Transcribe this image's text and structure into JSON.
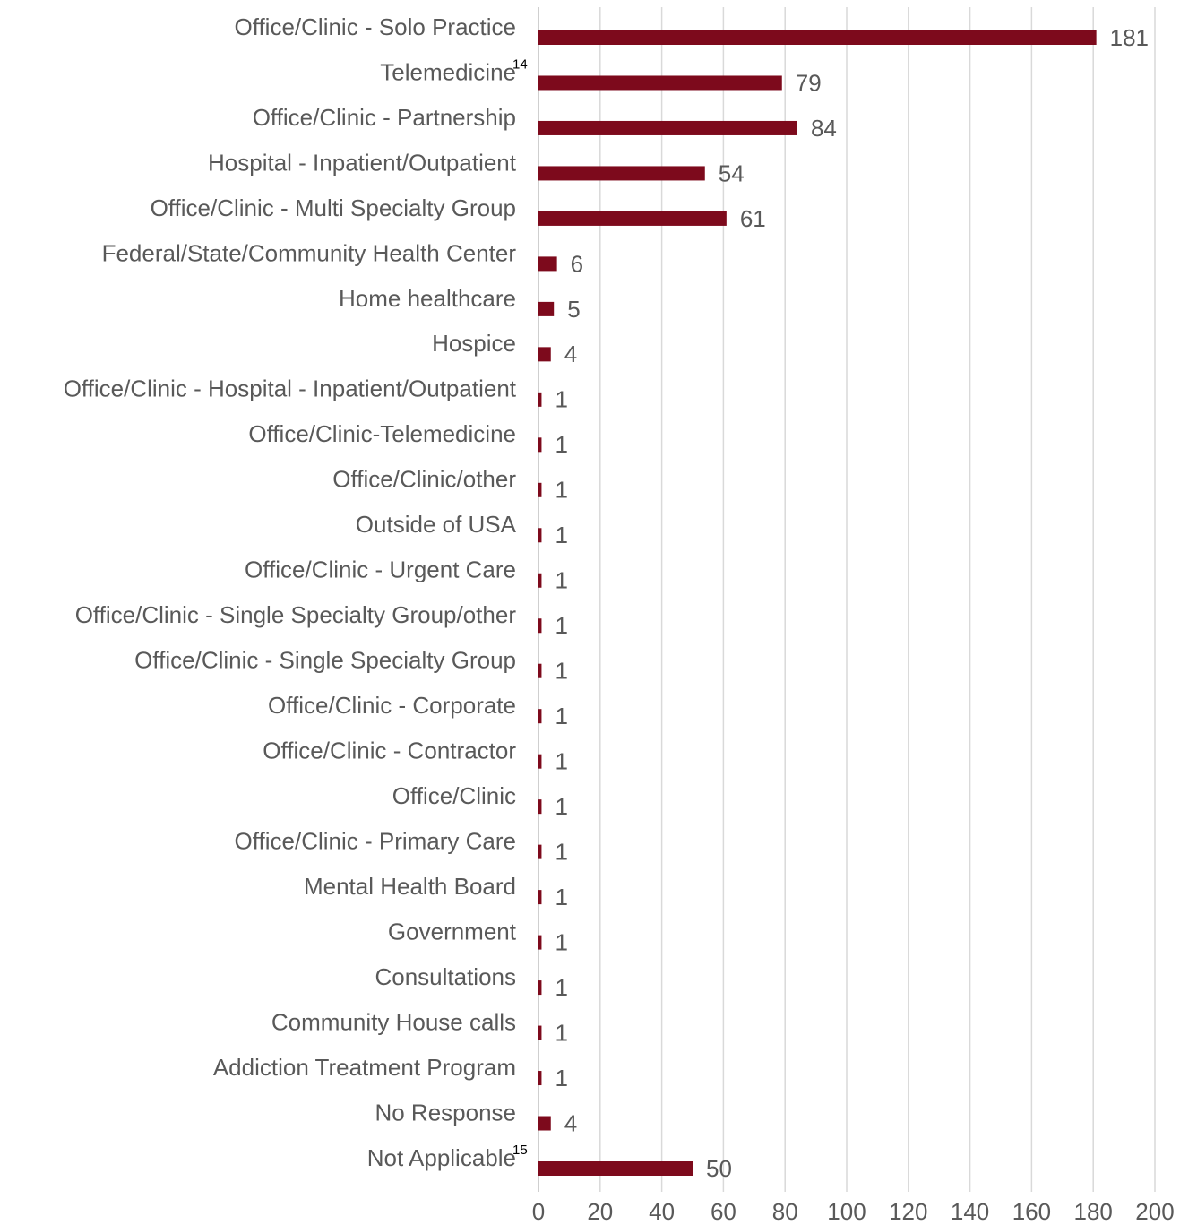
{
  "chart_data": {
    "type": "barh",
    "categories": [
      "Office/Clinic - Solo Practice",
      "Telemedicine",
      "Office/Clinic - Partnership",
      "Hospital - Inpatient/Outpatient",
      "Office/Clinic - Multi Specialty Group",
      "Federal/State/Community Health Center",
      "Home healthcare",
      "Hospice",
      "Office/Clinic - Hospital - Inpatient/Outpatient",
      "Office/Clinic-Telemedicine",
      "Office/Clinic/other",
      "Outside of USA",
      "Office/Clinic - Urgent Care",
      "Office/Clinic - Single Specialty Group/other",
      "Office/Clinic - Single Specialty Group",
      "Office/Clinic - Corporate",
      "Office/Clinic - Contractor",
      "Office/Clinic",
      "Office/Clinic - Primary Care",
      "Mental Health Board",
      "Government",
      "Consultations",
      "Community House calls",
      "Addiction Treatment Program",
      "No Response",
      "Not Applicable"
    ],
    "category_notes": [
      null,
      "14",
      null,
      null,
      null,
      null,
      null,
      null,
      null,
      null,
      null,
      null,
      null,
      null,
      null,
      null,
      null,
      null,
      null,
      null,
      null,
      null,
      null,
      null,
      null,
      "15"
    ],
    "values": [
      181,
      79,
      84,
      54,
      61,
      6,
      5,
      4,
      1,
      1,
      1,
      1,
      1,
      1,
      1,
      1,
      1,
      1,
      1,
      1,
      1,
      1,
      1,
      1,
      4,
      50
    ],
    "color": "#7d0a1c",
    "xlim": [
      0,
      200
    ],
    "xticks": [
      0,
      20,
      40,
      60,
      80,
      100,
      120,
      140,
      160,
      180,
      200
    ],
    "grid": true
  }
}
